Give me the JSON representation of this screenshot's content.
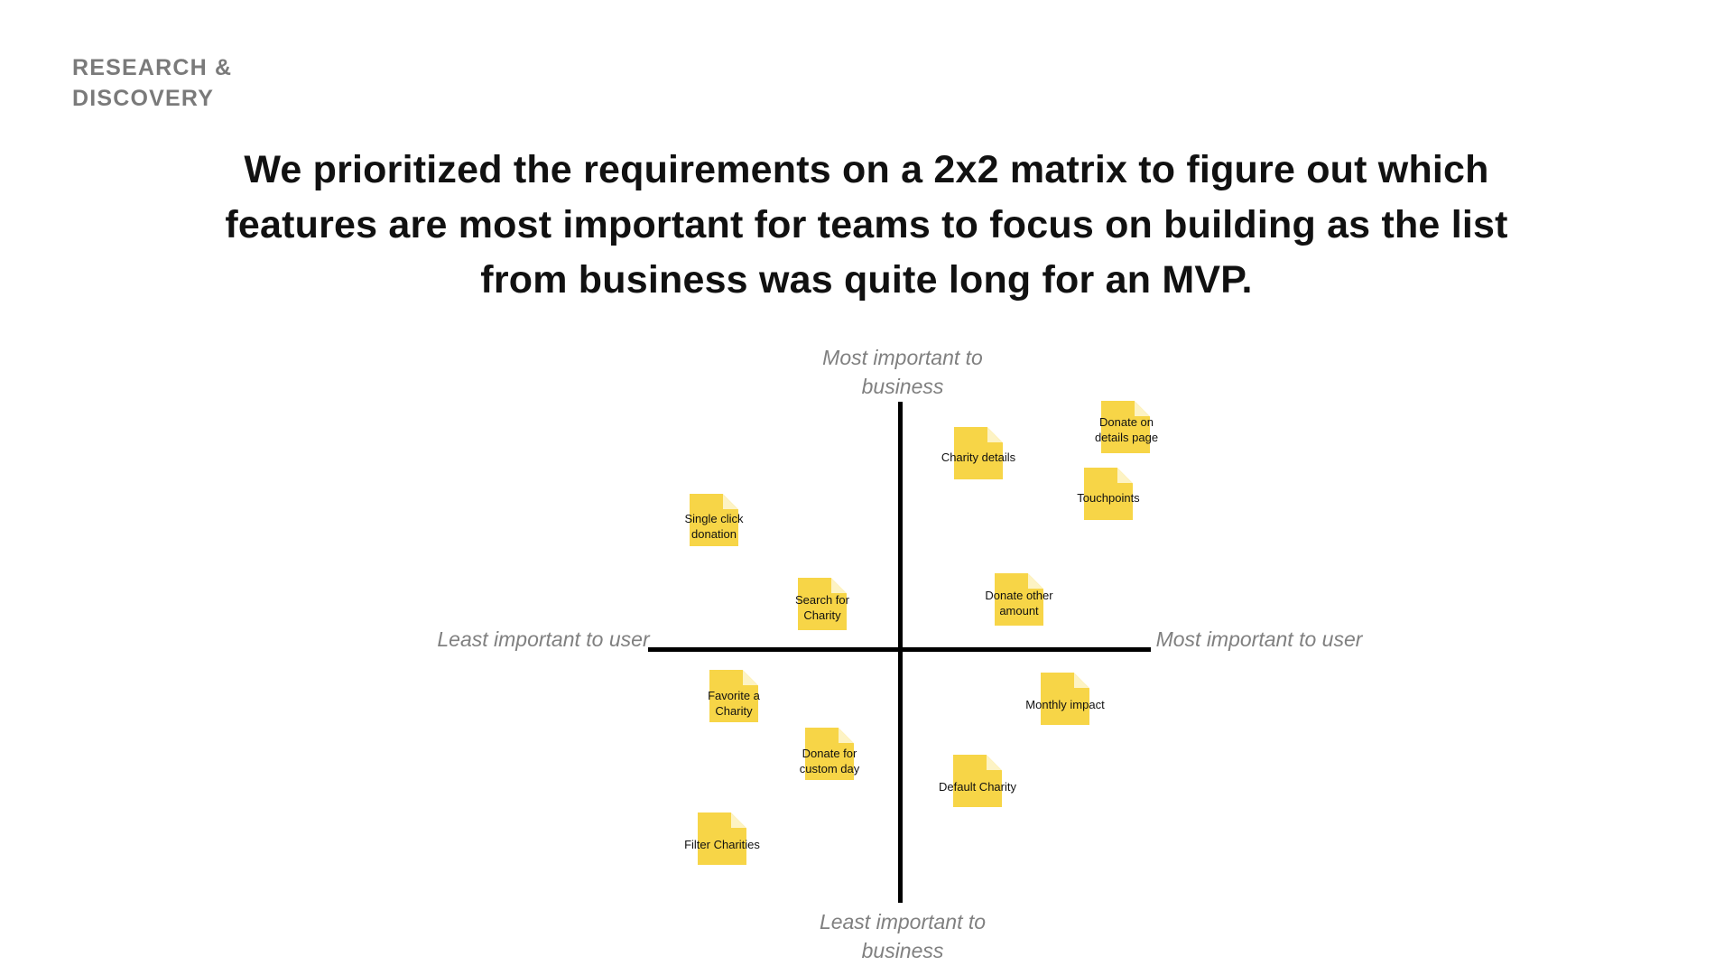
{
  "header": {
    "section_label": "RESEARCH & DISCOVERY",
    "headline": "We prioritized the requirements on a 2x2 matrix to figure out which features are most important for teams to focus on building as the list from business was quite long for an MVP."
  },
  "matrix": {
    "axes": {
      "top": "Most important to business",
      "bottom": "Least important to business",
      "left": "Least important to user",
      "right": "Most important to user"
    },
    "notes": [
      {
        "label": "Charity details",
        "color": "#f7d547"
      },
      {
        "label": "Donate on details page",
        "color": "#f7d547"
      },
      {
        "label": "Touchpoints",
        "color": "#f7d547"
      },
      {
        "label": "Single click donation",
        "color": "#f7d547"
      },
      {
        "label": "Search for Charity",
        "color": "#f7d547"
      },
      {
        "label": "Donate other amount",
        "color": "#f7d547"
      },
      {
        "label": "Favorite a Charity",
        "color": "#f7d547"
      },
      {
        "label": "Monthly impact",
        "color": "#f7d547"
      },
      {
        "label": "Donate for custom day",
        "color": "#f7d547"
      },
      {
        "label": "Default Charity",
        "color": "#f7d547"
      },
      {
        "label": "Filter Charities",
        "color": "#f7d547"
      }
    ]
  }
}
